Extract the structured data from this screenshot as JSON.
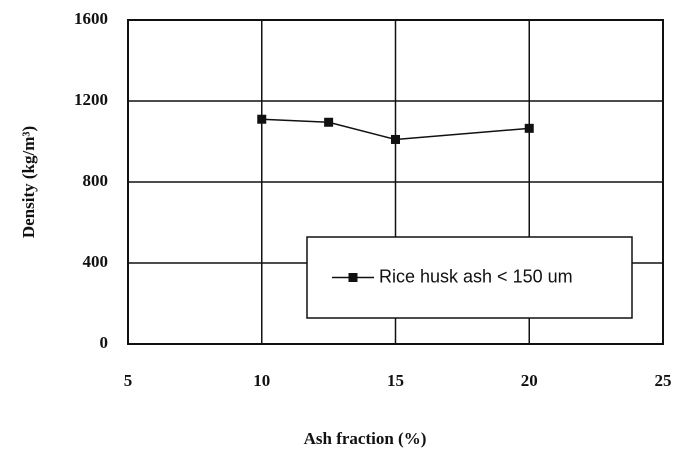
{
  "chart_data": {
    "type": "line",
    "x_label": "Ash fraction (%)",
    "y_label": "Density (kg/m³)",
    "x": [
      10,
      12.5,
      15,
      20
    ],
    "series": [
      {
        "name": "Rice husk ash < 150 um",
        "color": "#111111",
        "values": [
          1110,
          1095,
          1010,
          1065
        ]
      }
    ],
    "xlim": [
      5,
      25
    ],
    "xticks": [
      5,
      10,
      15,
      20,
      25
    ],
    "ylim": [
      0,
      1600
    ],
    "yticks": [
      0,
      400,
      800,
      1200,
      1600
    ],
    "grid": true,
    "legend_position": "lower right"
  }
}
